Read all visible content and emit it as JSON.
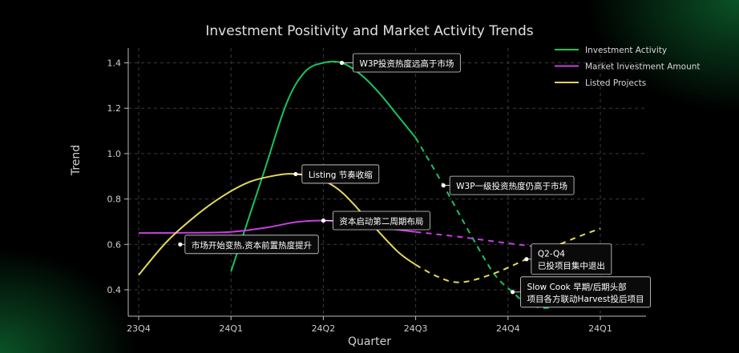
{
  "chart_data": {
    "type": "line",
    "title": "Investment Positivity and Market Activity Trends",
    "xlabel": "Quarter",
    "ylabel": "Trend",
    "categories": [
      "23Q4",
      "24Q1",
      "24Q2",
      "24Q3",
      "24Q4",
      "24Q1"
    ],
    "xlim": [
      -0.1,
      5.5
    ],
    "ylim": [
      0.32,
      1.46
    ],
    "yticks": [
      0.4,
      0.6,
      0.8,
      1.0,
      1.2,
      1.4
    ],
    "grid": true,
    "legend_position": "top-right",
    "series": [
      {
        "name": "Investment Activity",
        "color": "#17c45e",
        "solid": [
          [
            1.0,
            0.48
          ],
          [
            1.35,
            0.91
          ],
          [
            1.6,
            1.22
          ],
          [
            1.8,
            1.36
          ],
          [
            2.0,
            1.4
          ],
          [
            2.2,
            1.4
          ],
          [
            2.4,
            1.35
          ],
          [
            2.6,
            1.27
          ],
          [
            2.8,
            1.17
          ],
          [
            3.0,
            1.07
          ]
        ],
        "dashed": [
          [
            3.0,
            1.07
          ],
          [
            3.3,
            0.86
          ],
          [
            3.6,
            0.64
          ],
          [
            3.85,
            0.47
          ],
          [
            4.05,
            0.39
          ],
          [
            4.2,
            0.34
          ],
          [
            4.4,
            0.32
          ],
          [
            4.6,
            0.34
          ],
          [
            4.8,
            0.38
          ],
          [
            5.0,
            0.45
          ]
        ]
      },
      {
        "name": "Market Investment Amount",
        "color": "#c93fe0",
        "solid": [
          [
            0.0,
            0.65
          ],
          [
            0.5,
            0.651
          ],
          [
            1.0,
            0.655
          ],
          [
            1.4,
            0.675
          ],
          [
            1.7,
            0.698
          ],
          [
            2.0,
            0.705
          ],
          [
            2.3,
            0.695
          ],
          [
            2.6,
            0.675
          ],
          [
            3.0,
            0.655
          ]
        ],
        "dashed": [
          [
            3.0,
            0.655
          ],
          [
            3.5,
            0.632
          ],
          [
            4.0,
            0.605
          ],
          [
            4.3,
            0.59
          ]
        ]
      },
      {
        "name": "Listed Projects",
        "color": "#e4d857",
        "solid": [
          [
            0.0,
            0.465
          ],
          [
            0.3,
            0.61
          ],
          [
            0.6,
            0.72
          ],
          [
            0.9,
            0.81
          ],
          [
            1.2,
            0.875
          ],
          [
            1.5,
            0.905
          ],
          [
            1.7,
            0.91
          ],
          [
            1.95,
            0.89
          ],
          [
            2.2,
            0.83
          ],
          [
            2.5,
            0.7
          ],
          [
            2.8,
            0.57
          ],
          [
            3.0,
            0.51
          ]
        ],
        "dashed": [
          [
            3.0,
            0.51
          ],
          [
            3.2,
            0.465
          ],
          [
            3.4,
            0.435
          ],
          [
            3.6,
            0.44
          ],
          [
            3.9,
            0.48
          ],
          [
            4.2,
            0.535
          ],
          [
            4.5,
            0.59
          ],
          [
            4.8,
            0.64
          ],
          [
            5.0,
            0.67
          ]
        ]
      }
    ],
    "annotations": [
      {
        "text": "W3P投资热度远高于市场",
        "x": 2.2,
        "y": 1.4,
        "box": "right",
        "box_dx": 14,
        "box_dy": 0
      },
      {
        "text": "Listing 节奏收缩",
        "x": 1.7,
        "y": 0.91,
        "box": "right",
        "box_dx": 8,
        "box_dy": 0
      },
      {
        "text": "资本启动第二周期布局",
        "x": 2.0,
        "y": 0.705,
        "box": "right",
        "box_dx": 12,
        "box_dy": 0
      },
      {
        "text": "市场开始变热,资本前置热度提升",
        "x": 0.45,
        "y": 0.6,
        "box": "right",
        "box_dx": 6,
        "box_dy": 0
      },
      {
        "text": "W3P一级投资热度仍高于市场",
        "x": 3.3,
        "y": 0.86,
        "box": "right",
        "box_dx": 8,
        "box_dy": 0
      },
      {
        "text": "Q2-Q4\n已投项目集中退出",
        "x": 4.2,
        "y": 0.535,
        "box": "right",
        "box_dx": 6,
        "box_dy": 0
      },
      {
        "text": "Slow Cook 早期/后期头部\n项目各方联动Harvest投后项目",
        "x": 4.05,
        "y": 0.39,
        "box": "right",
        "box_dx": 10,
        "box_dy": 0
      }
    ]
  }
}
